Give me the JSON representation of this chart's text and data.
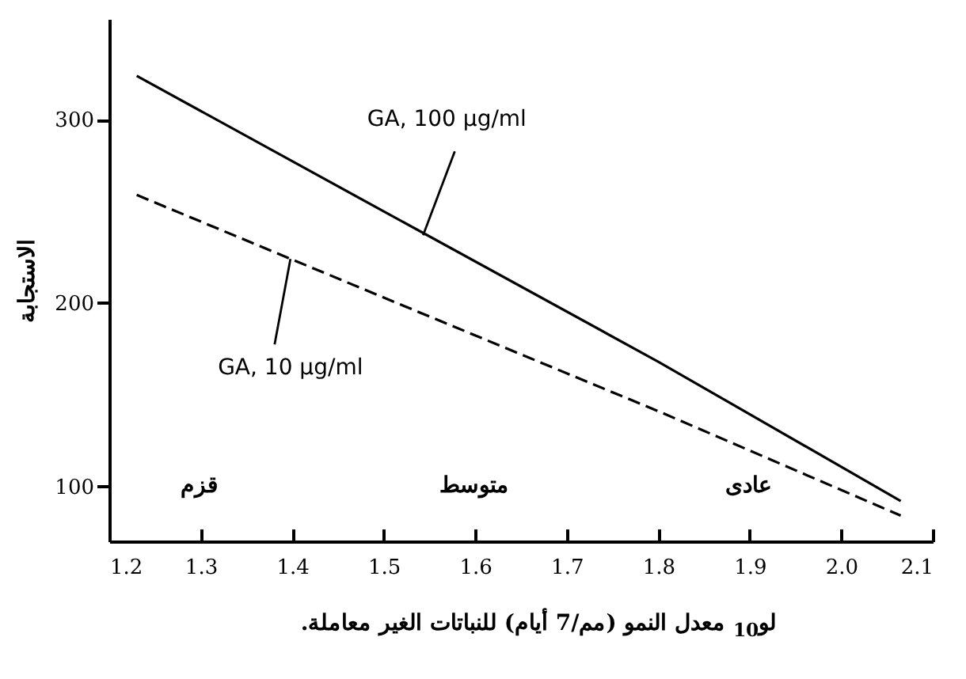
{
  "chart_data": {
    "type": "line",
    "xlabel": "لو$_{10}$ معدل النمو (مم/7 أيام) للنباتات الغير معاملة.",
    "ylabel": "الاستجابة",
    "xlim": [
      1.2,
      2.1
    ],
    "ylim": [
      70,
      355
    ],
    "xticks": [
      1.2,
      1.3,
      1.4,
      1.5,
      1.6,
      1.7,
      1.8,
      1.9,
      {
        "value": 2.0,
        "label": "2.0"
      },
      2.1
    ],
    "yticks": [
      100,
      200,
      300
    ],
    "grid": false,
    "marker": "none",
    "series": [
      {
        "color": "#000000",
        "line_style": "solid",
        "x": [
          1.23,
          1.5,
          1.8,
          2.065
        ],
        "values": [
          324,
          250,
          168,
          92
        ]
      },
      {
        "color": "#000000",
        "line_style": "dashed",
        "x": [
          1.23,
          1.5,
          1.8,
          2.065
        ],
        "values": [
          259,
          203,
          141,
          84
        ]
      }
    ],
    "annotations": [
      {
        "text": "GA, 100 µg/ml",
        "x": 1.543,
        "y": 237
      },
      {
        "text": "GA, 10 µg/ml",
        "x": 1.398,
        "y": 224
      },
      "قزم",
      "متوسط",
      "عادى"
    ]
  }
}
